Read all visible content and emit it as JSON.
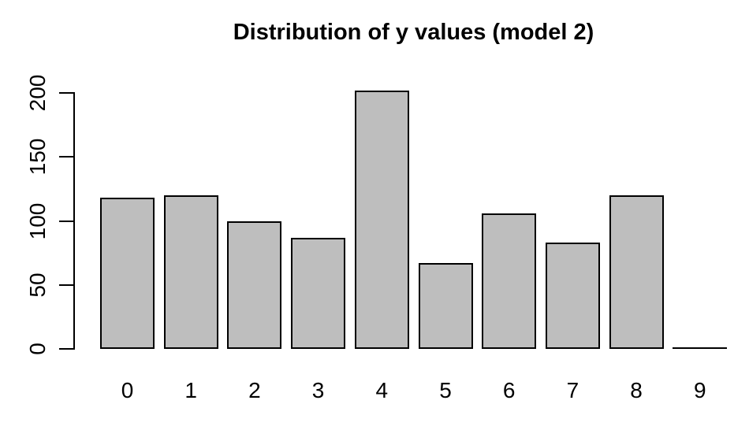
{
  "chart_data": {
    "type": "bar",
    "title": "Distribution of y values (model 2)",
    "categories": [
      "0",
      "1",
      "2",
      "3",
      "4",
      "5",
      "6",
      "7",
      "8",
      "9"
    ],
    "values": [
      118,
      120,
      100,
      87,
      202,
      67,
      106,
      83,
      120,
      0
    ],
    "xlabel": "",
    "ylabel": "",
    "ylim": [
      0,
      200
    ],
    "yticks": [
      0,
      50,
      100,
      150,
      200
    ],
    "grid": false,
    "legend": false,
    "colors": {
      "bar_fill": "#bebebe",
      "bar_border": "#000000",
      "axis": "#000000",
      "text": "#000000",
      "background": "#ffffff"
    }
  }
}
